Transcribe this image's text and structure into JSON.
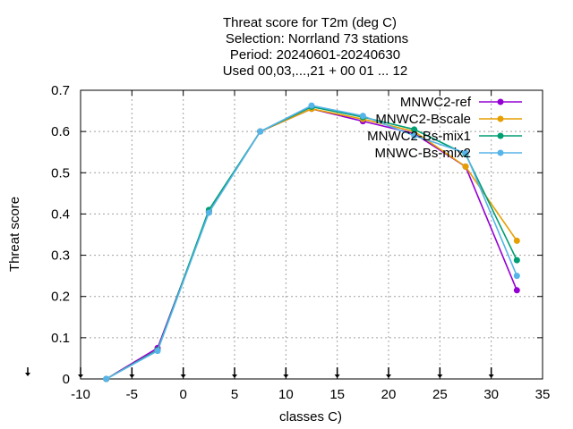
{
  "chart_data": {
    "type": "line",
    "title_lines": [
      "Threat score  for T2m (deg C)",
      "Selection: Norrland     73 stations",
      "Period: 20240601-20240630",
      "Used 00,03,...,21 + 00 01 ... 12"
    ],
    "xlabel": "classes C)",
    "ylabel": "Threat score",
    "xlim": [
      -10,
      35
    ],
    "ylim": [
      0,
      0.7
    ],
    "xticks": [
      -10,
      -5,
      0,
      5,
      10,
      15,
      20,
      25,
      30,
      35
    ],
    "yticks": [
      0,
      0.1,
      0.2,
      0.3,
      0.4,
      0.5,
      0.6,
      0.7
    ],
    "ytick_labels": [
      "0",
      "0.1",
      "0.2",
      "0.3",
      "0.4",
      "0.5",
      "0.6",
      "0.7"
    ],
    "grid": true,
    "legend_position": "top-right",
    "x": [
      -7.5,
      -2.5,
      2.5,
      7.5,
      12.5,
      17.5,
      22.5,
      27.5,
      32.5
    ],
    "series": [
      {
        "name": "MNWC2-ref",
        "color": "#9400d3",
        "marker": "circle",
        "values": [
          0.0,
          0.075,
          0.405,
          0.6,
          0.655,
          0.625,
          0.595,
          0.515,
          0.215
        ]
      },
      {
        "name": "MNWC2-Bscale",
        "color": "#e69f00",
        "marker": "circle",
        "values": [
          0.0,
          0.07,
          0.405,
          0.6,
          0.655,
          0.63,
          0.6,
          0.515,
          0.335
        ]
      },
      {
        "name": "MNWC2-Bs-mix1",
        "color": "#009e73",
        "marker": "circle",
        "values": [
          0.0,
          0.07,
          0.41,
          0.6,
          0.66,
          0.635,
          0.605,
          0.545,
          0.288
        ]
      },
      {
        "name": "MNWC-Bs-mix2",
        "color": "#56b4e9",
        "marker": "circle",
        "values": [
          0.0,
          0.068,
          0.403,
          0.6,
          0.663,
          0.638,
          0.59,
          0.548,
          0.25
        ]
      }
    ],
    "bottom_markers_x": [
      -10,
      -5,
      0,
      5,
      10,
      15,
      20,
      25,
      30
    ]
  }
}
